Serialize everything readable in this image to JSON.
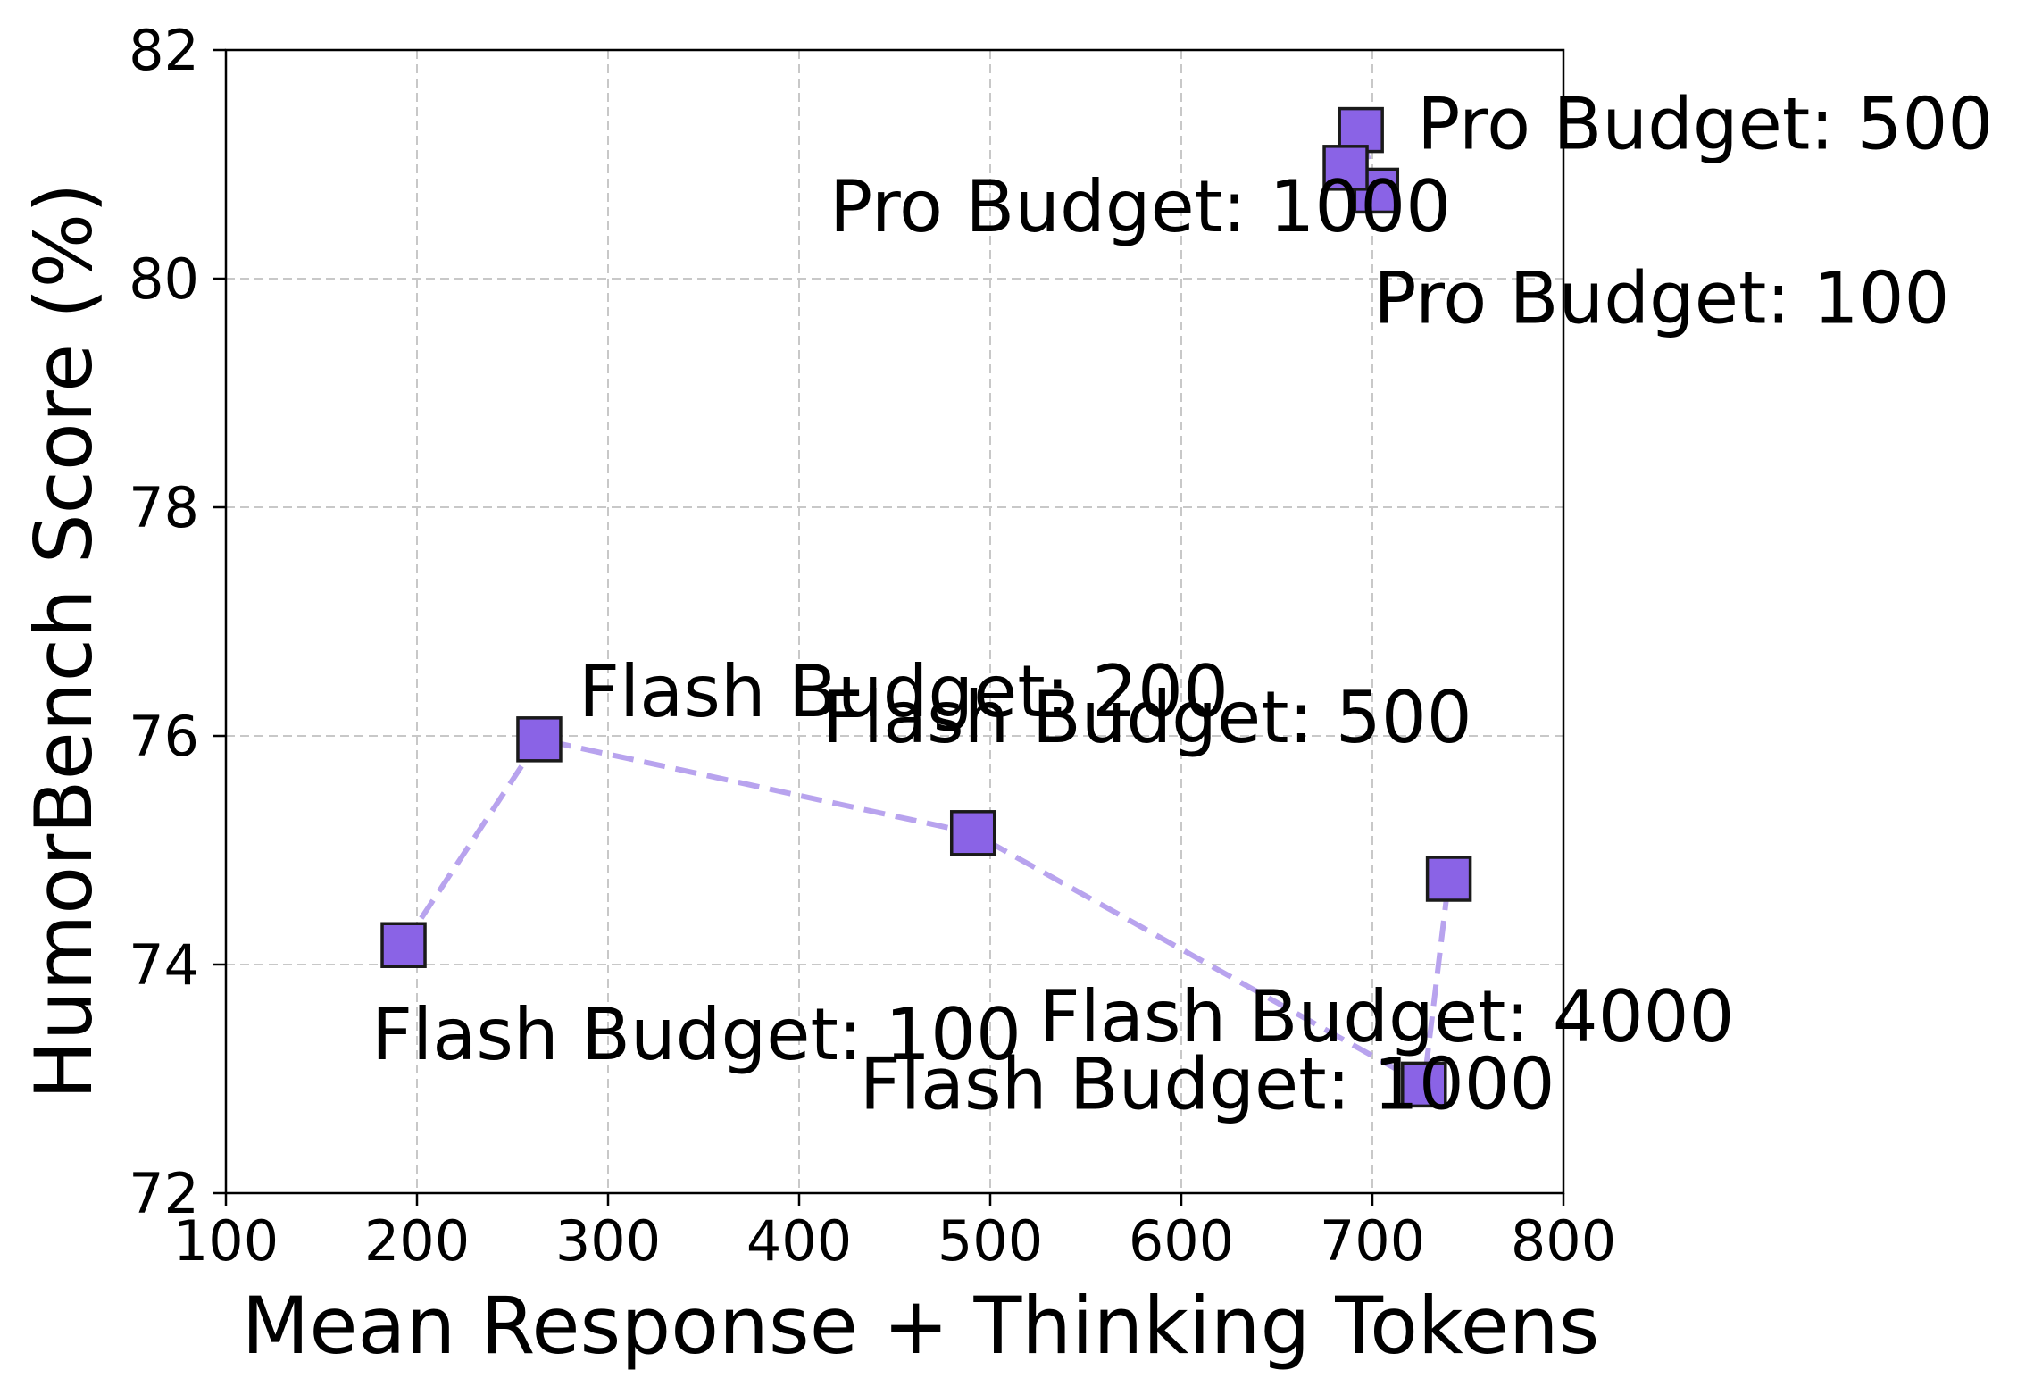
{
  "chart_data": {
    "type": "scatter",
    "title": "",
    "xlabel": "Mean Response + Thinking Tokens",
    "ylabel": "HumorBench Score (%)",
    "xlim": [
      100,
      800
    ],
    "ylim": [
      72,
      82
    ],
    "xticks": [
      100,
      200,
      300,
      400,
      500,
      600,
      700,
      800
    ],
    "yticks": [
      72,
      74,
      76,
      78,
      80,
      82
    ],
    "grid": true,
    "colors": {
      "marker_fill": "#8a63e6",
      "marker_edge": "#1a1a1a",
      "line": "#b8a3ee",
      "grid": "#c8c8c8",
      "axis": "#000000"
    },
    "series": [
      {
        "points": [
          {
            "label": "Flash Budget: 100",
            "x": 193,
            "y": 74.17
          },
          {
            "label": "Flash Budget: 200",
            "x": 264,
            "y": 75.97
          },
          {
            "label": "Flash Budget: 500",
            "x": 491,
            "y": 75.15
          },
          {
            "label": "Flash Budget: 1000",
            "x": 727,
            "y": 72.95
          },
          {
            "label": "Flash Budget: 4000",
            "x": 740,
            "y": 74.75
          }
        ]
      },
      {
        "points": [
          {
            "label": "Pro Budget: 100",
            "x": 702,
            "y": 80.77
          },
          {
            "label": "Pro Budget: 500",
            "x": 694,
            "y": 81.3
          },
          {
            "label": "Pro Budget: 1000",
            "x": 686,
            "y": 80.97
          }
        ]
      }
    ]
  }
}
